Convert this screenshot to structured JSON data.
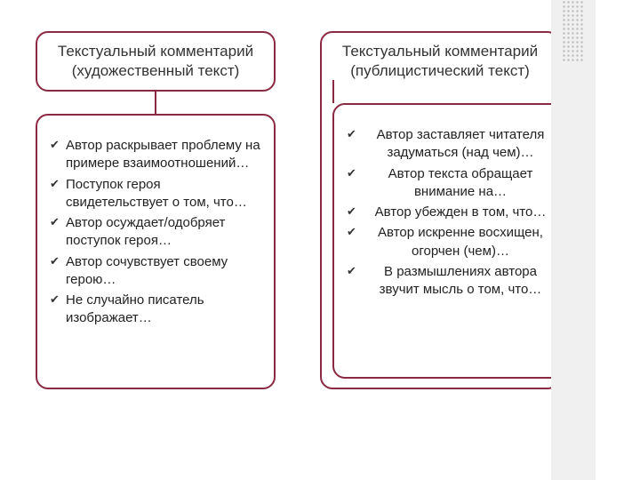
{
  "border_color": "#8b2942",
  "connector_color": "#8b2942",
  "background": "#ffffff",
  "scrollbar_bg": "#f0f0f0",
  "columns": [
    {
      "title_line1": "Текстуальный комментарий",
      "title_line2": "(художественный текст)",
      "items": [
        "Автор раскрывает проблему на примере взаимоотношений…",
        "Поступок героя свидетельствует о том, что…",
        "Автор осуждает/одобряет поступок героя…",
        "Автор сочувствует своему герою…",
        "Не случайно писатель изображает…"
      ]
    },
    {
      "title_line1": "Текстуальный комментарий",
      "title_line2": "(публицистический текст)",
      "items": [
        "Автор заставляет читателя задуматься (над чем)…",
        "Автор текста обращает внимание на…",
        "Автор убежден в том, что…",
        "Автор искренне восхищен, огорчен (чем)…",
        "В размышлениях автора звучит мысль о том, что…"
      ]
    }
  ]
}
